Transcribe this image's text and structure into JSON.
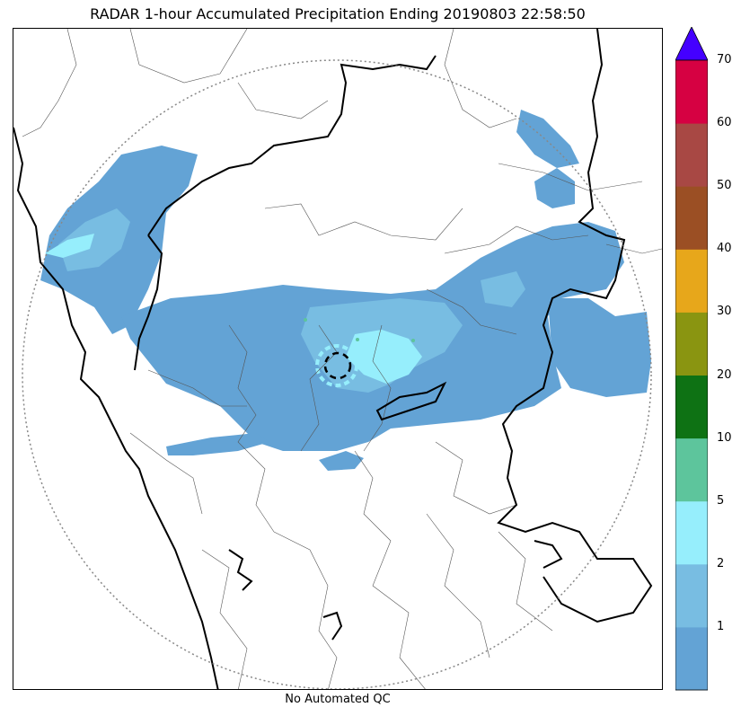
{
  "title": "RADAR 1-hour Accumulated Precipitation Ending 20190803 22:58:50",
  "footer_note": "No Automated QC",
  "colorbar": {
    "levels": [
      "1",
      "2",
      "5",
      "10",
      "20",
      "30",
      "40",
      "50",
      "60",
      "70"
    ],
    "colors": [
      "#63a3d5",
      "#78bde2",
      "#96eefc",
      "#5dc59c",
      "#0e7214",
      "#8a9511",
      "#e7a71b",
      "#9b4f24",
      "#a84844",
      "#d60142"
    ],
    "extend_color": "#4400ff"
  },
  "map_icons": {
    "range_ring": "dotted-range-ring",
    "radar_site": "dashed-radar-site-circle"
  }
}
